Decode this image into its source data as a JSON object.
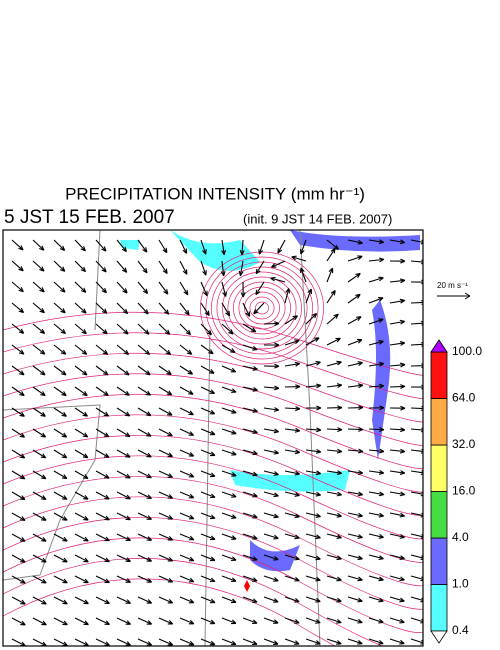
{
  "header": {
    "title": "PRECIPITATION INTENSITY (mm hr⁻¹)",
    "valid_time": "5 JST 15 FEB. 2007",
    "init_time": "(init. 9 JST 14 FEB. 2007)"
  },
  "vector_key": {
    "label": "20 m s⁻¹"
  },
  "colorbar": {
    "levels": [
      "0.4",
      "1.0",
      "4.0",
      "16.0",
      "32.0",
      "64.0",
      "100.0"
    ],
    "colors": [
      "#55ffff",
      "#6a6aff",
      "#44dd44",
      "#ffff66",
      "#ffaa44",
      "#ff1111"
    ],
    "over_color": "#b000ff",
    "under_color": "#ffffff"
  }
}
